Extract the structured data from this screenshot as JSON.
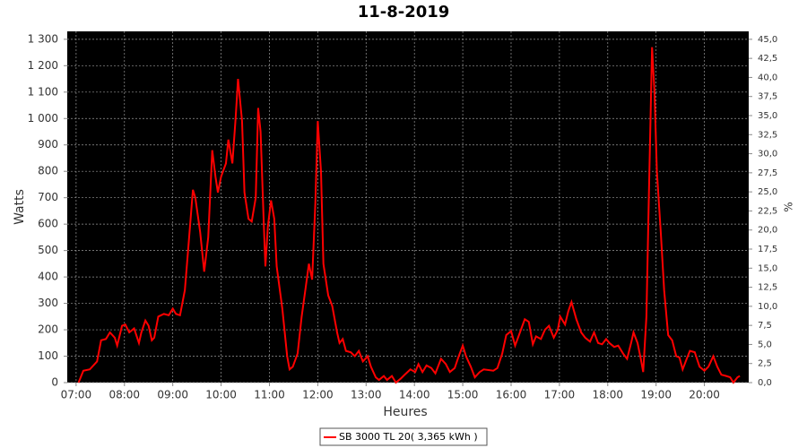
{
  "chart_data": {
    "type": "line",
    "title": "11-8-2019",
    "x_label": "Heures",
    "y_label": "Watts",
    "y2_label": "%",
    "x": [
      423,
      429,
      437,
      446,
      451,
      457,
      462,
      468,
      471,
      477,
      481,
      486,
      492,
      498,
      501,
      506,
      510,
      514,
      517,
      522,
      529,
      535,
      540,
      544,
      549,
      555,
      559,
      565,
      568,
      574,
      579,
      584,
      589,
      593,
      596,
      600,
      606,
      609,
      614,
      618,
      621,
      626,
      629,
      634,
      638,
      643,
      646,
      649,
      653,
      655,
      658,
      662,
      666,
      669,
      676,
      682,
      685,
      689,
      695,
      700,
      705,
      709,
      713,
      717,
      720,
      724,
      727,
      733,
      738,
      744,
      747,
      751,
      755,
      761,
      766,
      771,
      776,
      782,
      786,
      792,
      796,
      802,
      806,
      812,
      817,
      823,
      828,
      835,
      841,
      845,
      850,
      855,
      861,
      866,
      873,
      879,
      884,
      890,
      895,
      900,
      904,
      910,
      915,
      921,
      926,
      938,
      943,
      949,
      954,
      960,
      965,
      971,
      977,
      982,
      987,
      991,
      997,
      1002,
      1007,
      1013,
      1018,
      1021,
      1027,
      1031,
      1035,
      1041,
      1047,
      1052,
      1058,
      1063,
      1068,
      1073,
      1078,
      1082,
      1088,
      1093,
      1099,
      1104,
      1109,
      1112,
      1117,
      1121,
      1124,
      1128,
      1131,
      1135,
      1138,
      1141,
      1146,
      1150,
      1155,
      1160,
      1165,
      1169,
      1173,
      1178,
      1182,
      1188,
      1194,
      1200,
      1205,
      1211,
      1216,
      1221,
      1227,
      1232,
      1236,
      1241,
      1244
    ],
    "series": [
      {
        "name": "SB 3000 TL 20( 3,365 kWh )",
        "color": "#ff0000",
        "values": [
          0,
          45,
          50,
          80,
          160,
          165,
          190,
          170,
          140,
          215,
          220,
          190,
          205,
          150,
          190,
          235,
          215,
          160,
          170,
          250,
          260,
          255,
          280,
          260,
          255,
          350,
          500,
          730,
          700,
          570,
          420,
          550,
          880,
          780,
          720,
          780,
          830,
          920,
          830,
          1000,
          1150,
          990,
          720,
          620,
          610,
          700,
          1040,
          950,
          600,
          440,
          590,
          690,
          620,
          440,
          280,
          100,
          50,
          60,
          110,
          250,
          360,
          450,
          390,
          680,
          990,
          800,
          450,
          330,
          290,
          190,
          150,
          165,
          120,
          115,
          100,
          120,
          80,
          100,
          60,
          20,
          10,
          25,
          10,
          25,
          0,
          15,
          30,
          50,
          40,
          70,
          40,
          65,
          55,
          35,
          90,
          70,
          40,
          55,
          100,
          140,
          100,
          60,
          20,
          40,
          50,
          45,
          55,
          110,
          180,
          195,
          140,
          190,
          240,
          230,
          145,
          175,
          165,
          200,
          215,
          170,
          200,
          250,
          220,
          270,
          305,
          240,
          190,
          170,
          155,
          190,
          150,
          145,
          165,
          150,
          135,
          140,
          110,
          90,
          150,
          190,
          150,
          90,
          40,
          250,
          700,
          1270,
          1100,
          800,
          560,
          350,
          180,
          160,
          100,
          95,
          50,
          90,
          120,
          115,
          60,
          45,
          60,
          100,
          60,
          30,
          25,
          20,
          0,
          20,
          25
        ]
      }
    ],
    "xlim": [
      409,
      1255
    ],
    "xticks": [
      {
        "value": 420,
        "label": "07:00"
      },
      {
        "value": 480,
        "label": "08:00"
      },
      {
        "value": 540,
        "label": "09:00"
      },
      {
        "value": 600,
        "label": "10:00"
      },
      {
        "value": 660,
        "label": "11:00"
      },
      {
        "value": 720,
        "label": "12:00"
      },
      {
        "value": 780,
        "label": "13:00"
      },
      {
        "value": 840,
        "label": "14:00"
      },
      {
        "value": 900,
        "label": "15:00"
      },
      {
        "value": 960,
        "label": "16:00"
      },
      {
        "value": 1020,
        "label": "17:00"
      },
      {
        "value": 1080,
        "label": "18:00"
      },
      {
        "value": 1140,
        "label": "19:00"
      },
      {
        "value": 1200,
        "label": "20:00"
      }
    ],
    "ylim": [
      0,
      1330
    ],
    "yticks": [
      0,
      100,
      200,
      300,
      400,
      500,
      600,
      700,
      800,
      900,
      {
        "value": 1000,
        "label": "1 000"
      },
      {
        "value": 1100,
        "label": "1 100"
      },
      {
        "value": 1200,
        "label": "1 200"
      },
      {
        "value": 1300,
        "label": "1 300"
      }
    ],
    "y2lim": [
      0,
      46.04
    ],
    "y2ticks": [
      {
        "value": 0,
        "label": "0,0"
      },
      {
        "value": 2.5,
        "label": "2,5"
      },
      {
        "value": 5,
        "label": "5,0"
      },
      {
        "value": 7.5,
        "label": "7,5"
      },
      {
        "value": 10,
        "label": "10,0"
      },
      {
        "value": 12.5,
        "label": "12,5"
      },
      {
        "value": 15,
        "label": "15,0"
      },
      {
        "value": 17.5,
        "label": "17,5"
      },
      {
        "value": 20,
        "label": "20,0"
      },
      {
        "value": 22.5,
        "label": "22,5"
      },
      {
        "value": 25,
        "label": "25,0"
      },
      {
        "value": 27.5,
        "label": "27,5"
      },
      {
        "value": 30,
        "label": "30,0"
      },
      {
        "value": 32.5,
        "label": "32,5"
      },
      {
        "value": 35,
        "label": "35,0"
      },
      {
        "value": 37.5,
        "label": "37,5"
      },
      {
        "value": 40,
        "label": "40,0"
      },
      {
        "value": 42.5,
        "label": "42,5"
      },
      {
        "value": 45,
        "label": "45,0"
      }
    ],
    "grid": true,
    "legend": "bottom"
  }
}
